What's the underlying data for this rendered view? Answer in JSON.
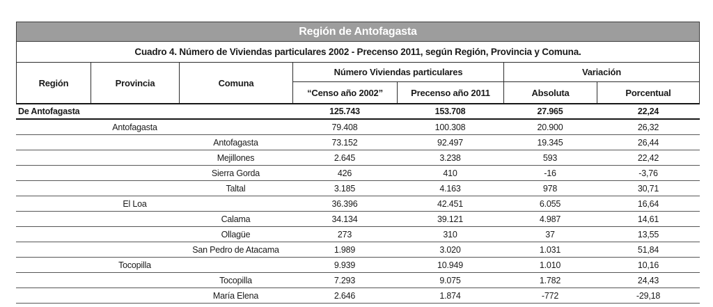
{
  "table": {
    "title": "Región de Antofagasta",
    "subtitle": "Cuadro 4. Número de Viviendas particulares 2002 - Precenso 2011, según Región, Provincia y Comuna.",
    "columns": {
      "region": "Región",
      "provincia": "Provincia",
      "comuna": "Comuna",
      "group_viviendas": "Número Viviendas particulares",
      "censo2002": "“Censo año 2002”",
      "precenso2011": "Precenso año 2011",
      "group_variacion": "Variación",
      "absoluta": "Absoluta",
      "porcentual": "Porcentual"
    },
    "rows": [
      {
        "level": "region",
        "name": "De Antofagasta",
        "censo2002": "125.743",
        "precenso2011": "153.708",
        "absoluta": "27.965",
        "porcentual": "22,24"
      },
      {
        "level": "provincia",
        "name": "Antofagasta",
        "censo2002": "79.408",
        "precenso2011": "100.308",
        "absoluta": "20.900",
        "porcentual": "26,32"
      },
      {
        "level": "comuna",
        "name": "Antofagasta",
        "censo2002": "73.152",
        "precenso2011": "92.497",
        "absoluta": "19.345",
        "porcentual": "26,44"
      },
      {
        "level": "comuna",
        "name": "Mejillones",
        "censo2002": "2.645",
        "precenso2011": "3.238",
        "absoluta": "593",
        "porcentual": "22,42"
      },
      {
        "level": "comuna",
        "name": "Sierra Gorda",
        "censo2002": "426",
        "precenso2011": "410",
        "absoluta": "-16",
        "porcentual": "-3,76"
      },
      {
        "level": "comuna",
        "name": "Taltal",
        "censo2002": "3.185",
        "precenso2011": "4.163",
        "absoluta": "978",
        "porcentual": "30,71"
      },
      {
        "level": "provincia",
        "name": "El Loa",
        "censo2002": "36.396",
        "precenso2011": "42.451",
        "absoluta": "6.055",
        "porcentual": "16,64"
      },
      {
        "level": "comuna",
        "name": "Calama",
        "censo2002": "34.134",
        "precenso2011": "39.121",
        "absoluta": "4.987",
        "porcentual": "14,61"
      },
      {
        "level": "comuna",
        "name": "Ollagüe",
        "censo2002": "273",
        "precenso2011": "310",
        "absoluta": "37",
        "porcentual": "13,55"
      },
      {
        "level": "comuna",
        "name": "San Pedro de Atacama",
        "censo2002": "1.989",
        "precenso2011": "3.020",
        "absoluta": "1.031",
        "porcentual": "51,84"
      },
      {
        "level": "provincia",
        "name": "Tocopilla",
        "censo2002": "9.939",
        "precenso2011": "10.949",
        "absoluta": "1.010",
        "porcentual": "10,16"
      },
      {
        "level": "comuna",
        "name": "Tocopilla",
        "censo2002": "7.293",
        "precenso2011": "9.075",
        "absoluta": "1.782",
        "porcentual": "24,43"
      },
      {
        "level": "comuna",
        "name": "María Elena",
        "censo2002": "2.646",
        "precenso2011": "1.874",
        "absoluta": "-772",
        "porcentual": "-29,18"
      }
    ]
  },
  "colors": {
    "title_bg": "#9d9d9d",
    "title_text": "#ffffff",
    "border_dark": "#2b2b2b",
    "row_line": "#565656",
    "heavy_line": "#161616",
    "text": "#1a1a1a"
  }
}
